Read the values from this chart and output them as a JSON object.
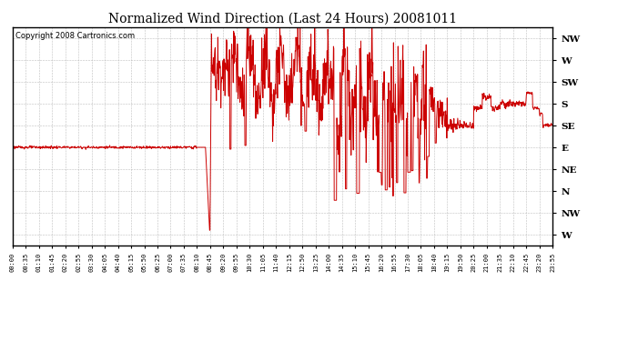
{
  "title": "Normalized Wind Direction (Last 24 Hours) 20081011",
  "copyright_text": "Copyright 2008 Cartronics.com",
  "line_color": "#cc0000",
  "background_color": "#ffffff",
  "grid_color": "#b0b0b0",
  "ytick_labels": [
    "NW",
    "W",
    "SW",
    "S",
    "SE",
    "E",
    "NE",
    "N",
    "NW",
    "W"
  ],
  "ytick_values": [
    9,
    8,
    7,
    6,
    5,
    4,
    3,
    2,
    1,
    0
  ],
  "ylim": [
    -0.5,
    9.5
  ],
  "figsize": [
    6.9,
    3.75
  ],
  "dpi": 100,
  "xtick_labels": [
    "00:00",
    "00:35",
    "01:10",
    "01:45",
    "02:20",
    "02:55",
    "03:30",
    "04:05",
    "04:40",
    "05:15",
    "05:50",
    "06:25",
    "07:00",
    "07:35",
    "08:10",
    "08:45",
    "09:20",
    "09:55",
    "10:30",
    "11:05",
    "11:40",
    "12:15",
    "12:50",
    "13:25",
    "14:00",
    "14:35",
    "15:10",
    "15:45",
    "16:20",
    "16:55",
    "17:30",
    "18:05",
    "18:40",
    "19:15",
    "19:50",
    "20:25",
    "21:00",
    "21:35",
    "22:10",
    "22:45",
    "23:20",
    "23:55"
  ]
}
